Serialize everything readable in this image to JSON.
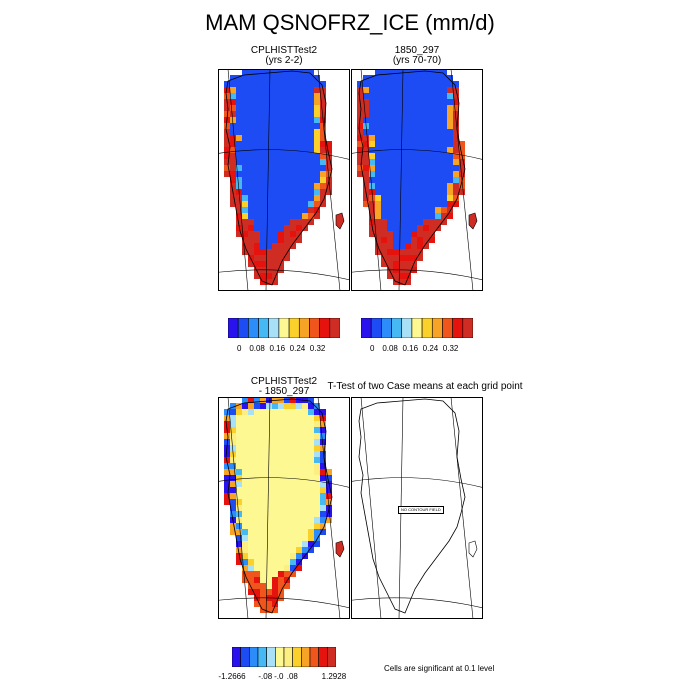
{
  "figure": {
    "title": "MAM QSNOFRZ_ICE (mm/d)"
  },
  "panels": {
    "top_left": {
      "line1": "CPLHISTTest2",
      "line2": "(yrs 2-2)"
    },
    "top_right": {
      "line1": "1850_297",
      "line2": "(yrs 70-70)"
    },
    "bottom_left": {
      "line1": "CPLHISTTest2",
      "line2": "- 1850_297"
    },
    "bottom_right": {
      "title": "T-Test of two Case means at each grid point",
      "inset_label": "NO CONTOUR FIELD"
    }
  },
  "footnote": "Cells are significant at 0.1 level",
  "chart_data": [
    {
      "type": "heatmap",
      "panel": "top_left",
      "field": "QSNOFRZ_ICE",
      "units": "mm/d",
      "colorbar": {
        "colors": [
          "#2a12ef",
          "#1d4cf5",
          "#2b8cfa",
          "#46b8f4",
          "#a8e1f7",
          "#fef893",
          "#fcd02a",
          "#f7a326",
          "#f0561b",
          "#e5120d",
          "#cf2d24"
        ],
        "tick_labels": [
          "0",
          "0.08",
          "0.16",
          "0.24",
          "0.32"
        ],
        "tick_values": [
          0,
          0.08,
          0.16,
          0.24,
          0.32
        ]
      },
      "pattern": "interior ~0 (blue), coastal margins 0.24–0.40 (orange/red)"
    },
    {
      "type": "heatmap",
      "panel": "top_right",
      "field": "QSNOFRZ_ICE",
      "units": "mm/d",
      "colorbar": {
        "colors": [
          "#2a12ef",
          "#1d4cf5",
          "#2b8cfa",
          "#46b8f4",
          "#a8e1f7",
          "#fef893",
          "#fcd02a",
          "#f7a326",
          "#f0561b",
          "#e5120d",
          "#cf2d24"
        ],
        "tick_labels": [
          "0",
          "0.08",
          "0.16",
          "0.24",
          "0.32"
        ],
        "tick_values": [
          0,
          0.08,
          0.16,
          0.24,
          0.32
        ]
      },
      "pattern": "interior ~0 (blue), coastal margins 0.24–0.40 (orange/red)"
    },
    {
      "type": "heatmap",
      "panel": "bottom_left",
      "field": "difference",
      "units": "mm/d",
      "colorbar": {
        "colors": [
          "#2a12ef",
          "#1d4cf5",
          "#2b8cfa",
          "#46b8f4",
          "#a8e1f7",
          "#fef893",
          "#fdee82",
          "#fcd02a",
          "#f7a326",
          "#f0561b",
          "#e5120d",
          "#cf2d24"
        ],
        "tick_labels": [
          "-1.2666",
          "-.08",
          "-.0",
          ".08",
          "1.2928"
        ],
        "tick_values": [
          -1.2666,
          -0.08,
          -0.0,
          0.08,
          1.2928
        ]
      },
      "pattern": "interior ~0 (pale yellow), mixed positive/negative along margins"
    }
  ]
}
